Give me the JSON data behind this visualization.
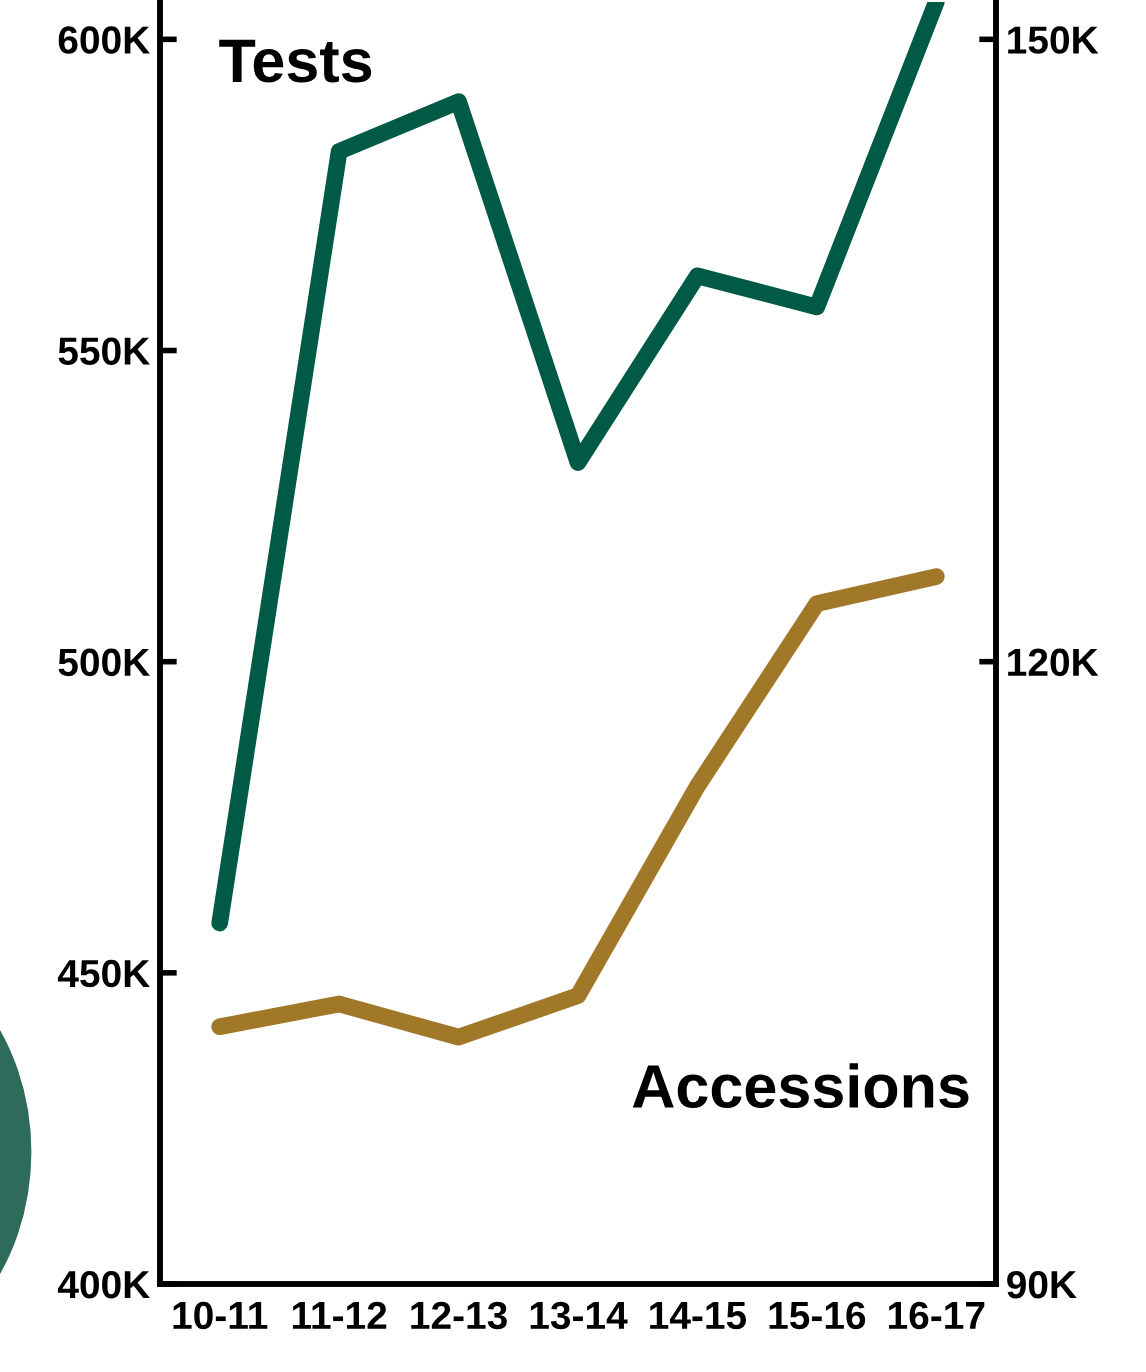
{
  "chart_data": {
    "type": "line",
    "categories": [
      "10-11",
      "11-12",
      "12-13",
      "13-14",
      "14-15",
      "15-16",
      "16-17"
    ],
    "series": [
      {
        "name": "Tests",
        "color": "#005a46",
        "values": [
          458,
          582,
          590,
          532,
          562,
          557,
          606
        ]
      },
      {
        "name": "Accessions",
        "color": "#a07828",
        "axis": "y2",
        "values": [
          102.4,
          103.5,
          101.9,
          103.9,
          114.0,
          122.8,
          124.1
        ]
      }
    ],
    "ylim": [
      400,
      606
    ],
    "yticks": [
      {
        "value": 400,
        "label": "400K"
      },
      {
        "value": 450,
        "label": "450K"
      },
      {
        "value": 500,
        "label": "500K"
      },
      {
        "value": 550,
        "label": "550K"
      },
      {
        "value": 600,
        "label": "600K"
      }
    ],
    "y2lim": [
      90,
      151.8
    ],
    "y2ticks": [
      {
        "value": 90,
        "label": "90K"
      },
      {
        "value": 120,
        "label": "120K"
      },
      {
        "value": 150,
        "label": "150K"
      }
    ],
    "grid": false,
    "legend": false,
    "marker": "none",
    "line_style": "solid"
  }
}
